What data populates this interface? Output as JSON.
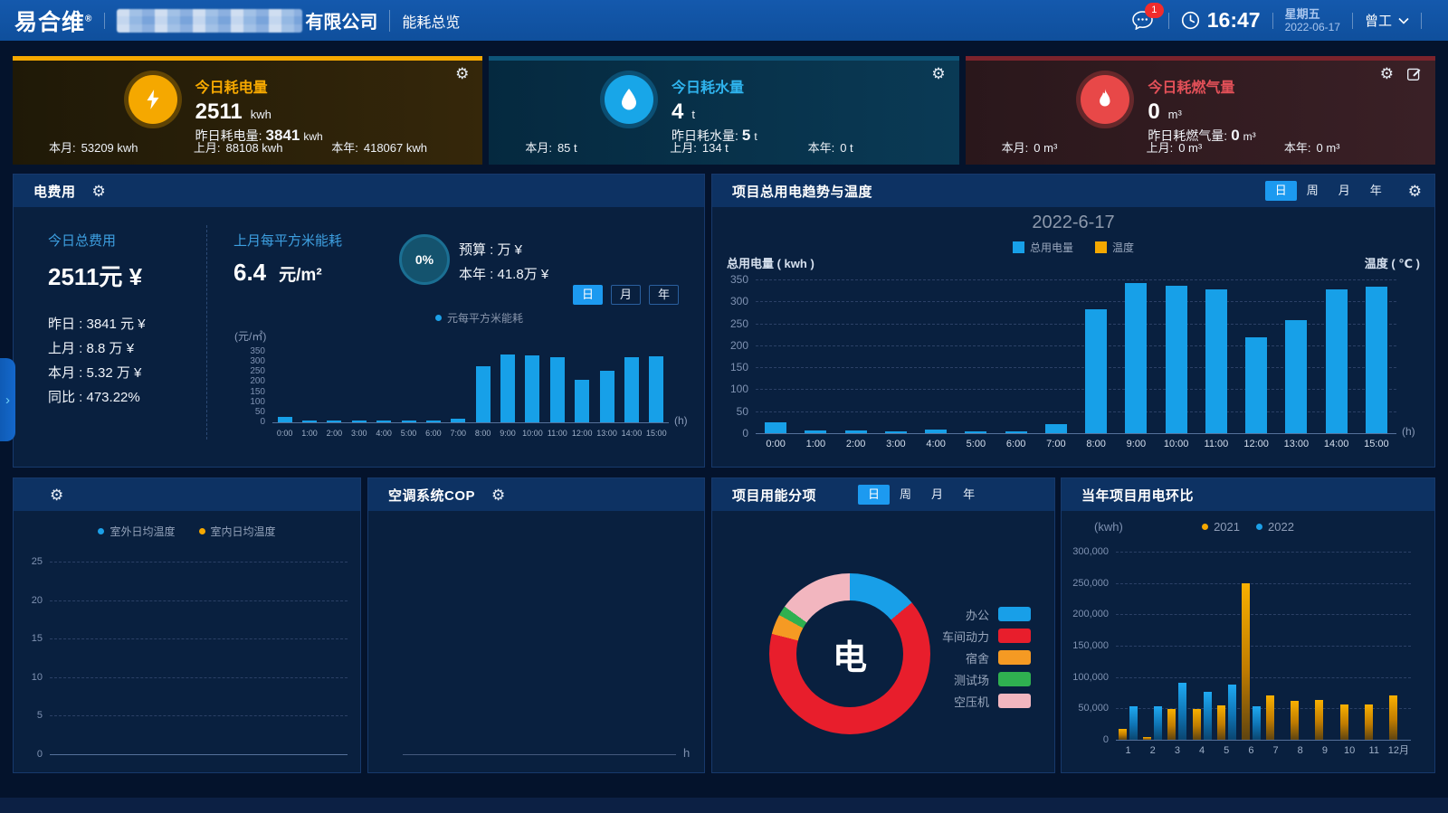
{
  "header": {
    "logo": "易合维",
    "reg_mark": "®",
    "company_suffix": "有限公司",
    "nav_item": "能耗总览",
    "message_badge": "1",
    "time": "16:47",
    "weekday": "星期五",
    "date": "2022-06-17",
    "user_name": "曾工"
  },
  "icons": {
    "gear": "⚙"
  },
  "kpi_cards": [
    {
      "title": "今日耗电量",
      "value": "2511",
      "unit": "kwh",
      "yesterday_label": "昨日耗电量:",
      "yesterday_value": "3841",
      "yesterday_unit": "kwh",
      "accent": "#f5a800",
      "stats": [
        {
          "label": "本月:",
          "value": "53209 kwh"
        },
        {
          "label": "上月:",
          "value": "88108 kwh"
        },
        {
          "label": "本年:",
          "value": "418067 kwh"
        }
      ]
    },
    {
      "title": "今日耗水量",
      "value": "4",
      "unit": "t",
      "yesterday_label": "昨日耗水量:",
      "yesterday_value": "5",
      "yesterday_unit": "t",
      "accent": "#18a6e8",
      "stats": [
        {
          "label": "本月:",
          "value": "85 t"
        },
        {
          "label": "上月:",
          "value": "134 t"
        },
        {
          "label": "本年:",
          "value": "0 t"
        }
      ]
    },
    {
      "title": "今日耗燃气量",
      "value": "0",
      "unit": "m³",
      "yesterday_label": "昨日耗燃气量:",
      "yesterday_value": "0",
      "yesterday_unit": "m³",
      "accent": "#e84848",
      "stats": [
        {
          "label": "本月:",
          "value": "0 m³"
        },
        {
          "label": "上月:",
          "value": "0 m³"
        },
        {
          "label": "本年:",
          "value": "0 m³"
        }
      ]
    }
  ],
  "cost_panel": {
    "title": "电费用",
    "today_label": "今日总费用",
    "today_value": "2511元  ¥",
    "detail_rows": [
      "昨日 : 3841 元 ¥",
      "上月 : 8.8 万 ¥",
      "本月 : 5.32 万 ¥",
      "同比 : 473.22%"
    ],
    "sqm_label": "上月每平方米能耗",
    "sqm_value": "6.4",
    "sqm_unit": "元/m²",
    "gauge_value": "0%",
    "budget_line": "预算 : 万 ¥",
    "year_line": "本年 : 41.8万 ¥",
    "tabs": [
      "日",
      "月",
      "年"
    ],
    "active_tab": "日",
    "legend": "元每平方米能耗",
    "legend_color": "#1ca0e8"
  },
  "trend_panel": {
    "title": "项目总用电趋势与温度",
    "tabs": [
      "日",
      "周",
      "月",
      "年"
    ],
    "active_tab": "日"
  },
  "temp_panel": {
    "title": ""
  },
  "cop_panel": {
    "title": "空调系统COP"
  },
  "breakdown_panel": {
    "title": "项目用能分项",
    "tabs": [
      "日",
      "周",
      "月",
      "年"
    ],
    "active_tab": "日"
  },
  "yoy_panel": {
    "title": "当年项目用电环比"
  },
  "drawer": {
    "chevron": "›"
  },
  "chart_data": [
    {
      "id": "hourly_cost",
      "type": "bar",
      "title": "",
      "ylabel": "(元/㎡)",
      "xlabel": "(h)",
      "ylim": [
        0,
        350
      ],
      "yticks": [
        0,
        50,
        100,
        150,
        200,
        250,
        300,
        350
      ],
      "categories": [
        "0:00",
        "1:00",
        "2:00",
        "3:00",
        "4:00",
        "5:00",
        "6:00",
        "7:00",
        "8:00",
        "9:00",
        "10:00",
        "11:00",
        "12:00",
        "13:00",
        "14:00",
        "15:00"
      ],
      "values": [
        25,
        8,
        8,
        5,
        10,
        5,
        4,
        20,
        278,
        338,
        332,
        322,
        212,
        256,
        322,
        328
      ],
      "bar_color": "#17a0e8",
      "grid": false,
      "legend_position": "none"
    },
    {
      "id": "trend",
      "type": "bar",
      "title": "2022-6-17",
      "ylabel": "总用电量 ( kwh )",
      "y2label": "温度 ( ℃ )",
      "xlabel": "(h)",
      "ylim": [
        0,
        350
      ],
      "yticks": [
        0,
        50,
        100,
        150,
        200,
        250,
        300,
        350
      ],
      "categories": [
        "0:00",
        "1:00",
        "2:00",
        "3:00",
        "4:00",
        "5:00",
        "6:00",
        "7:00",
        "8:00",
        "9:00",
        "10:00",
        "11:00",
        "12:00",
        "13:00",
        "14:00",
        "15:00"
      ],
      "series": [
        {
          "name": "总用电量",
          "color": "#17a0e8",
          "values": [
            25,
            7,
            7,
            5,
            9,
            5,
            4,
            20,
            283,
            342,
            336,
            328,
            219,
            258,
            328,
            333
          ]
        },
        {
          "name": "温度",
          "color": "#f5a800",
          "values": []
        }
      ],
      "grid": true,
      "legend_position": "top"
    },
    {
      "id": "daily_temp",
      "type": "line",
      "title": "",
      "ylim": [
        0,
        25
      ],
      "yticks": [
        0,
        5,
        10,
        15,
        20,
        25
      ],
      "categories": [],
      "series": [
        {
          "name": "室外日均温度",
          "color": "#1ca0e8",
          "values": []
        },
        {
          "name": "室内日均温度",
          "color": "#f5a800",
          "values": []
        }
      ],
      "grid": true,
      "legend_position": "top"
    },
    {
      "id": "cop",
      "type": "line",
      "title": "空调系统COP",
      "xlabel": "h",
      "categories": [],
      "values": []
    },
    {
      "id": "energy_breakdown",
      "type": "pie",
      "center_label": "电",
      "slices": [
        {
          "label": "办公",
          "color": "#189fe8",
          "pct": 14
        },
        {
          "label": "车间动力",
          "color": "#e81e2c",
          "pct": 65
        },
        {
          "label": "宿舍",
          "color": "#f59a23",
          "pct": 4
        },
        {
          "label": "测试场",
          "color": "#2fb050",
          "pct": 2
        },
        {
          "label": "空压机",
          "color": "#f2b6bf",
          "pct": 15
        }
      ],
      "legend_position": "right"
    },
    {
      "id": "yoy_monthly",
      "type": "bar",
      "title": "当年项目用电环比",
      "ylabel": "(kwh)",
      "ylim": [
        0,
        300000
      ],
      "yticks": [
        "0",
        "50,000",
        "100,000",
        "150,000",
        "200,000",
        "250,000",
        "300,000"
      ],
      "categories": [
        "1",
        "2",
        "3",
        "4",
        "5",
        "6",
        "7",
        "8",
        "9",
        "10",
        "11",
        "12月"
      ],
      "series": [
        {
          "name": "2021",
          "color": "#f5a800",
          "values": [
            18000,
            5000,
            49000,
            49000,
            55000,
            250000,
            70000,
            62000,
            63000,
            56000,
            56000,
            70000
          ]
        },
        {
          "name": "2022",
          "color": "#1ca0e8",
          "values": [
            53000,
            54000,
            91000,
            77000,
            88000,
            53000,
            0,
            0,
            0,
            0,
            0,
            0
          ]
        }
      ],
      "grid": true,
      "legend_position": "top"
    }
  ]
}
